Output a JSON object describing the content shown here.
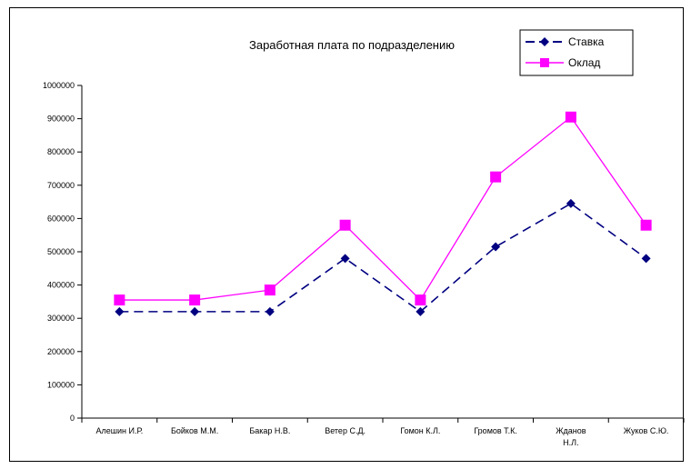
{
  "chart_data": {
    "type": "line",
    "title": "Заработная плата по подразделению",
    "xlabel": "",
    "ylabel": "",
    "categories": [
      "Алешин И.Р.",
      "Бойков М.М.",
      "Бакар Н.В.",
      "Ветер С.Д.",
      "Гомон К.Л.",
      "Громов Т.К.",
      "Жданов Н.Л.",
      "Жуков С.Ю."
    ],
    "category_lines": [
      [
        "Алешин И.Р."
      ],
      [
        "Бойков М.М."
      ],
      [
        "Бакар Н.В."
      ],
      [
        "Ветер С.Д."
      ],
      [
        "Гомон К.Л."
      ],
      [
        "Громов Т.К."
      ],
      [
        "Жданов",
        "Н.Л."
      ],
      [
        "Жуков С.Ю."
      ]
    ],
    "ylim": [
      0,
      1000000
    ],
    "yticks": [
      0,
      100000,
      200000,
      300000,
      400000,
      500000,
      600000,
      700000,
      800000,
      900000,
      1000000
    ],
    "ytick_labels": [
      "0",
      "100000",
      "200000",
      "300000",
      "400000",
      "500000",
      "600000",
      "700000",
      "800000",
      "900000",
      "1000000"
    ],
    "grid": false,
    "legend_position": "top-right",
    "series": [
      {
        "name": "Ставка",
        "color": "#000080",
        "marker": "diamond",
        "line_style": "dashed",
        "values": [
          320000,
          320000,
          320000,
          480000,
          320000,
          515000,
          645000,
          480000
        ]
      },
      {
        "name": "Оклад",
        "color": "#ff00ff",
        "marker": "square",
        "line_style": "solid",
        "values": [
          355000,
          355000,
          385000,
          580000,
          355000,
          725000,
          905000,
          580000
        ]
      }
    ]
  }
}
